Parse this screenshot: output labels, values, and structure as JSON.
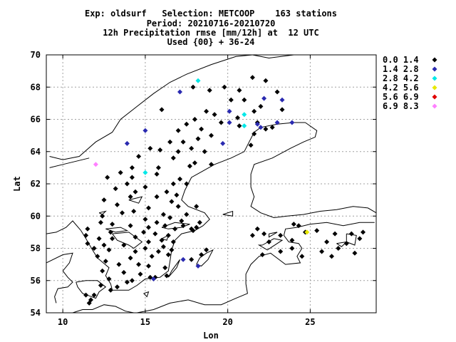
{
  "title_lines": [
    "Exp: oldsurf   Selection: METCOOP    163 stations",
    "Period: 20210716-20210720",
    "12h Precipitation rmse [mm/12h] at  12 UTC",
    "Used {00} + 36-24"
  ],
  "chart_data": {
    "type": "scatter",
    "xlabel": "Lon",
    "ylabel": "Lat",
    "xlim": [
      9,
      29
    ],
    "ylim": [
      54,
      70
    ],
    "xticks": [
      10,
      15,
      20,
      25
    ],
    "yticks": [
      54,
      56,
      58,
      60,
      62,
      64,
      66,
      68,
      70
    ],
    "grid": true,
    "legend_position": "right",
    "legend": [
      {
        "label": "0.0 1.4",
        "color": "#000000"
      },
      {
        "label": "1.4 2.8",
        "color": "#2a2ab0"
      },
      {
        "label": "2.8 4.2",
        "color": "#00e8e8"
      },
      {
        "label": "4.2 5.6",
        "color": "#e8e800"
      },
      {
        "label": "5.6 6.9",
        "color": "#e00000"
      },
      {
        "label": "6.9 8.3",
        "color": "#ff80ff"
      }
    ],
    "series": [
      {
        "class": 0,
        "points": [
          [
            21.5,
            68.6
          ],
          [
            22.3,
            68.4
          ],
          [
            20.7,
            67.8
          ],
          [
            23.0,
            67.7
          ],
          [
            19.8,
            68.0
          ],
          [
            18.9,
            67.8
          ],
          [
            17.9,
            68.0
          ],
          [
            21.0,
            67.2
          ],
          [
            20.2,
            67.2
          ],
          [
            22.0,
            66.8
          ],
          [
            23.3,
            66.6
          ],
          [
            21.6,
            66.5
          ],
          [
            20.6,
            66.1
          ],
          [
            18.7,
            66.5
          ],
          [
            18.0,
            66.0
          ],
          [
            16.0,
            66.6
          ],
          [
            19.2,
            66.3
          ],
          [
            19.6,
            65.8
          ],
          [
            21.8,
            65.8
          ],
          [
            22.7,
            65.5
          ],
          [
            22.3,
            65.4
          ],
          [
            17.5,
            65.7
          ],
          [
            17.0,
            65.3
          ],
          [
            18.4,
            65.4
          ],
          [
            21.6,
            65.1
          ],
          [
            21.4,
            64.4
          ],
          [
            20.7,
            65.6
          ],
          [
            19.0,
            65.0
          ],
          [
            18.2,
            64.8
          ],
          [
            17.3,
            64.6
          ],
          [
            16.5,
            64.6
          ],
          [
            15.9,
            64.1
          ],
          [
            15.3,
            64.2
          ],
          [
            17.8,
            64.2
          ],
          [
            18.6,
            64.0
          ],
          [
            17.0,
            64.0
          ],
          [
            14.6,
            63.7
          ],
          [
            16.7,
            63.6
          ],
          [
            18.0,
            63.3
          ],
          [
            19.0,
            63.2
          ],
          [
            17.7,
            63.1
          ],
          [
            15.8,
            63.0
          ],
          [
            14.2,
            63.0
          ],
          [
            13.5,
            62.7
          ],
          [
            12.7,
            62.4
          ],
          [
            14.2,
            62.4
          ],
          [
            15.7,
            62.6
          ],
          [
            17.1,
            62.3
          ],
          [
            17.5,
            62.0
          ],
          [
            13.9,
            62.0
          ],
          [
            16.7,
            62.0
          ],
          [
            15.0,
            61.8
          ],
          [
            16.3,
            61.5
          ],
          [
            13.2,
            61.7
          ],
          [
            14.4,
            61.5
          ],
          [
            16.9,
            61.3
          ],
          [
            15.7,
            61.2
          ],
          [
            12.5,
            61.0
          ],
          [
            14.1,
            61.2
          ],
          [
            16.6,
            60.9
          ],
          [
            13.3,
            60.7
          ],
          [
            15.2,
            60.5
          ],
          [
            17.0,
            60.6
          ],
          [
            18.1,
            60.6
          ],
          [
            14.3,
            60.3
          ],
          [
            13.6,
            60.2
          ],
          [
            16.1,
            60.1
          ],
          [
            17.5,
            60.1
          ],
          [
            12.4,
            60.0
          ],
          [
            15.0,
            59.8
          ],
          [
            16.5,
            59.9
          ],
          [
            17.2,
            59.7
          ],
          [
            18.3,
            59.6
          ],
          [
            13.0,
            59.5
          ],
          [
            15.7,
            59.6
          ],
          [
            16.2,
            59.4
          ],
          [
            17.3,
            59.4
          ],
          [
            18.1,
            59.3
          ],
          [
            12.3,
            59.6
          ],
          [
            14.1,
            59.4
          ],
          [
            15.2,
            59.3
          ],
          [
            16.8,
            59.2
          ],
          [
            17.8,
            59.2
          ],
          [
            11.5,
            59.2
          ],
          [
            12.9,
            59.0
          ],
          [
            14.9,
            59.0
          ],
          [
            15.6,
            58.9
          ],
          [
            16.4,
            58.8
          ],
          [
            17.9,
            59.1
          ],
          [
            11.4,
            58.8
          ],
          [
            12.2,
            58.6
          ],
          [
            13.0,
            58.6
          ],
          [
            14.4,
            58.7
          ],
          [
            15.2,
            58.4
          ],
          [
            16.0,
            58.5
          ],
          [
            16.7,
            58.4
          ],
          [
            11.5,
            58.3
          ],
          [
            12.5,
            58.2
          ],
          [
            13.7,
            58.2
          ],
          [
            15.0,
            58.0
          ],
          [
            16.1,
            58.1
          ],
          [
            16.6,
            57.9
          ],
          [
            18.4,
            57.6
          ],
          [
            11.9,
            58.0
          ],
          [
            12.8,
            57.9
          ],
          [
            14.4,
            57.8
          ],
          [
            15.8,
            57.8
          ],
          [
            18.7,
            57.9
          ],
          [
            12.1,
            57.5
          ],
          [
            14.1,
            57.4
          ],
          [
            15.4,
            57.5
          ],
          [
            16.4,
            57.6
          ],
          [
            17.8,
            57.3
          ],
          [
            12.6,
            57.2
          ],
          [
            13.4,
            57.0
          ],
          [
            14.6,
            57.0
          ],
          [
            15.2,
            56.9
          ],
          [
            16.2,
            56.8
          ],
          [
            12.4,
            56.6
          ],
          [
            13.7,
            56.5
          ],
          [
            14.7,
            56.4
          ],
          [
            15.6,
            56.2
          ],
          [
            12.8,
            56.1
          ],
          [
            14.2,
            56.0
          ],
          [
            15.3,
            56.2
          ],
          [
            16.3,
            56.3
          ],
          [
            13.3,
            55.6
          ],
          [
            12.9,
            55.4
          ],
          [
            13.9,
            55.9
          ],
          [
            12.3,
            55.7
          ],
          [
            11.7,
            54.8
          ],
          [
            11.4,
            55.1
          ],
          [
            11.9,
            55.1
          ],
          [
            11.6,
            54.6
          ],
          [
            21.8,
            59.2
          ],
          [
            22.2,
            58.9
          ],
          [
            23.2,
            58.8
          ],
          [
            23.9,
            58.5
          ],
          [
            22.5,
            58.4
          ],
          [
            23.9,
            58.0
          ],
          [
            24.7,
            59.0
          ],
          [
            24.0,
            59.5
          ],
          [
            24.3,
            59.4
          ],
          [
            25.4,
            59.1
          ],
          [
            26.5,
            58.9
          ],
          [
            27.5,
            58.9
          ],
          [
            28.2,
            59.0
          ],
          [
            26.0,
            58.4
          ],
          [
            27.2,
            58.3
          ],
          [
            28.0,
            58.6
          ],
          [
            26.7,
            58.0
          ],
          [
            25.7,
            57.8
          ],
          [
            26.3,
            57.5
          ],
          [
            27.7,
            57.7
          ],
          [
            21.5,
            58.8
          ],
          [
            22.1,
            57.6
          ],
          [
            23.2,
            57.8
          ],
          [
            24.5,
            57.5
          ]
        ]
      },
      {
        "class": 1,
        "points": [
          [
            17.1,
            67.7
          ],
          [
            22.2,
            67.3
          ],
          [
            23.3,
            67.2
          ],
          [
            20.1,
            66.5
          ],
          [
            21.8,
            65.7
          ],
          [
            22.0,
            65.5
          ],
          [
            23.0,
            65.8
          ],
          [
            23.9,
            65.8
          ],
          [
            20.1,
            65.8
          ],
          [
            15.0,
            65.3
          ],
          [
            13.9,
            64.5
          ],
          [
            19.7,
            64.5
          ],
          [
            15.5,
            56.1
          ],
          [
            17.3,
            57.3
          ],
          [
            18.2,
            56.9
          ]
        ]
      },
      {
        "class": 2,
        "points": [
          [
            18.2,
            68.4
          ],
          [
            21.0,
            66.3
          ],
          [
            21.0,
            65.6
          ],
          [
            15.0,
            62.7
          ]
        ]
      },
      {
        "class": 3,
        "points": [
          [
            24.8,
            59.0
          ]
        ]
      },
      {
        "class": 5,
        "points": [
          [
            12.0,
            63.2
          ]
        ]
      }
    ]
  }
}
